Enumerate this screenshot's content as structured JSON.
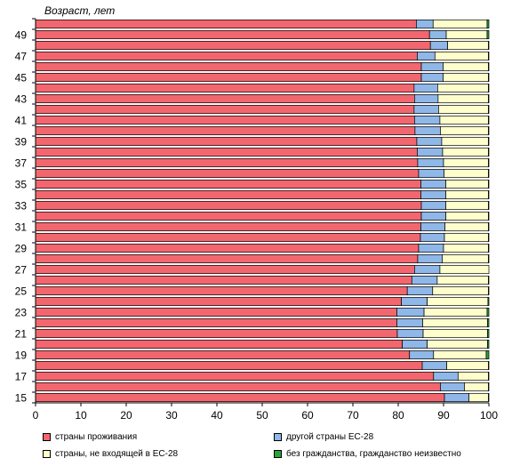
{
  "chart_data": {
    "type": "bar",
    "orientation": "horizontal",
    "stacked": true,
    "ylabel": "Возраст, лет",
    "xlim": [
      0,
      100
    ],
    "x_ticks": [
      0,
      10,
      20,
      30,
      40,
      50,
      60,
      70,
      80,
      90,
      100
    ],
    "y_tick_labels": [
      "15",
      "17",
      "19",
      "21",
      "23",
      "25",
      "27",
      "29",
      "31",
      "33",
      "35",
      "37",
      "39",
      "41",
      "43",
      "45",
      "47",
      "49"
    ],
    "categories": [
      "15",
      "16",
      "17",
      "18",
      "19",
      "20",
      "21",
      "22",
      "23",
      "24",
      "25",
      "26",
      "27",
      "28",
      "29",
      "30",
      "31",
      "32",
      "33",
      "34",
      "35",
      "36",
      "37",
      "38",
      "39",
      "40",
      "41",
      "42",
      "43",
      "44",
      "45",
      "46",
      "47",
      "48",
      "49",
      "50"
    ],
    "grid": false,
    "legend_position": "bottom",
    "series": [
      {
        "name": "страны проживания",
        "color": "#f2676f",
        "values": [
          90.2,
          89.3,
          87.8,
          85.3,
          82.5,
          80.9,
          79.8,
          79.7,
          79.7,
          80.7,
          82.0,
          83.0,
          83.6,
          84.3,
          84.5,
          84.9,
          85.0,
          85.1,
          85.1,
          85.0,
          85.0,
          84.5,
          84.3,
          84.2,
          84.1,
          83.7,
          83.6,
          83.5,
          83.6,
          83.5,
          85.1,
          85.1,
          84.2,
          87.1,
          86.9,
          84.0
        ]
      },
      {
        "name": "другой страны ЕС-28",
        "color": "#8fb7e8",
        "values": [
          5.4,
          5.3,
          5.4,
          5.4,
          5.3,
          5.5,
          5.7,
          5.7,
          6.0,
          5.7,
          5.6,
          5.6,
          5.6,
          5.4,
          5.5,
          5.3,
          5.3,
          5.4,
          5.4,
          5.5,
          5.5,
          5.6,
          5.7,
          5.6,
          5.5,
          5.6,
          5.6,
          5.4,
          5.2,
          5.2,
          4.8,
          4.8,
          3.9,
          3.8,
          3.7,
          3.7
        ]
      },
      {
        "name": "страны, не входящей в ЕС-28",
        "color": "#fefecc",
        "values": [
          4.3,
          5.3,
          6.7,
          9.2,
          11.6,
          13.3,
          14.2,
          14.3,
          13.9,
          13.4,
          12.3,
          11.3,
          10.8,
          10.2,
          9.9,
          9.7,
          9.6,
          9.4,
          9.4,
          9.4,
          9.4,
          9.8,
          9.9,
          10.1,
          10.3,
          10.6,
          10.7,
          11.0,
          11.1,
          11.2,
          10.0,
          10.0,
          11.8,
          9.0,
          9.0,
          11.9
        ]
      },
      {
        "name": "без гражданства, гражданство неизвестно",
        "color": "#2aa33a",
        "values": [
          0.1,
          0.1,
          0.1,
          0.1,
          0.6,
          0.3,
          0.3,
          0.3,
          0.4,
          0.2,
          0.1,
          0.1,
          0.0,
          0.1,
          0.1,
          0.1,
          0.1,
          0.1,
          0.1,
          0.1,
          0.1,
          0.1,
          0.1,
          0.1,
          0.1,
          0.1,
          0.1,
          0.1,
          0.1,
          0.1,
          0.1,
          0.1,
          0.1,
          0.1,
          0.4,
          0.4
        ]
      }
    ]
  }
}
